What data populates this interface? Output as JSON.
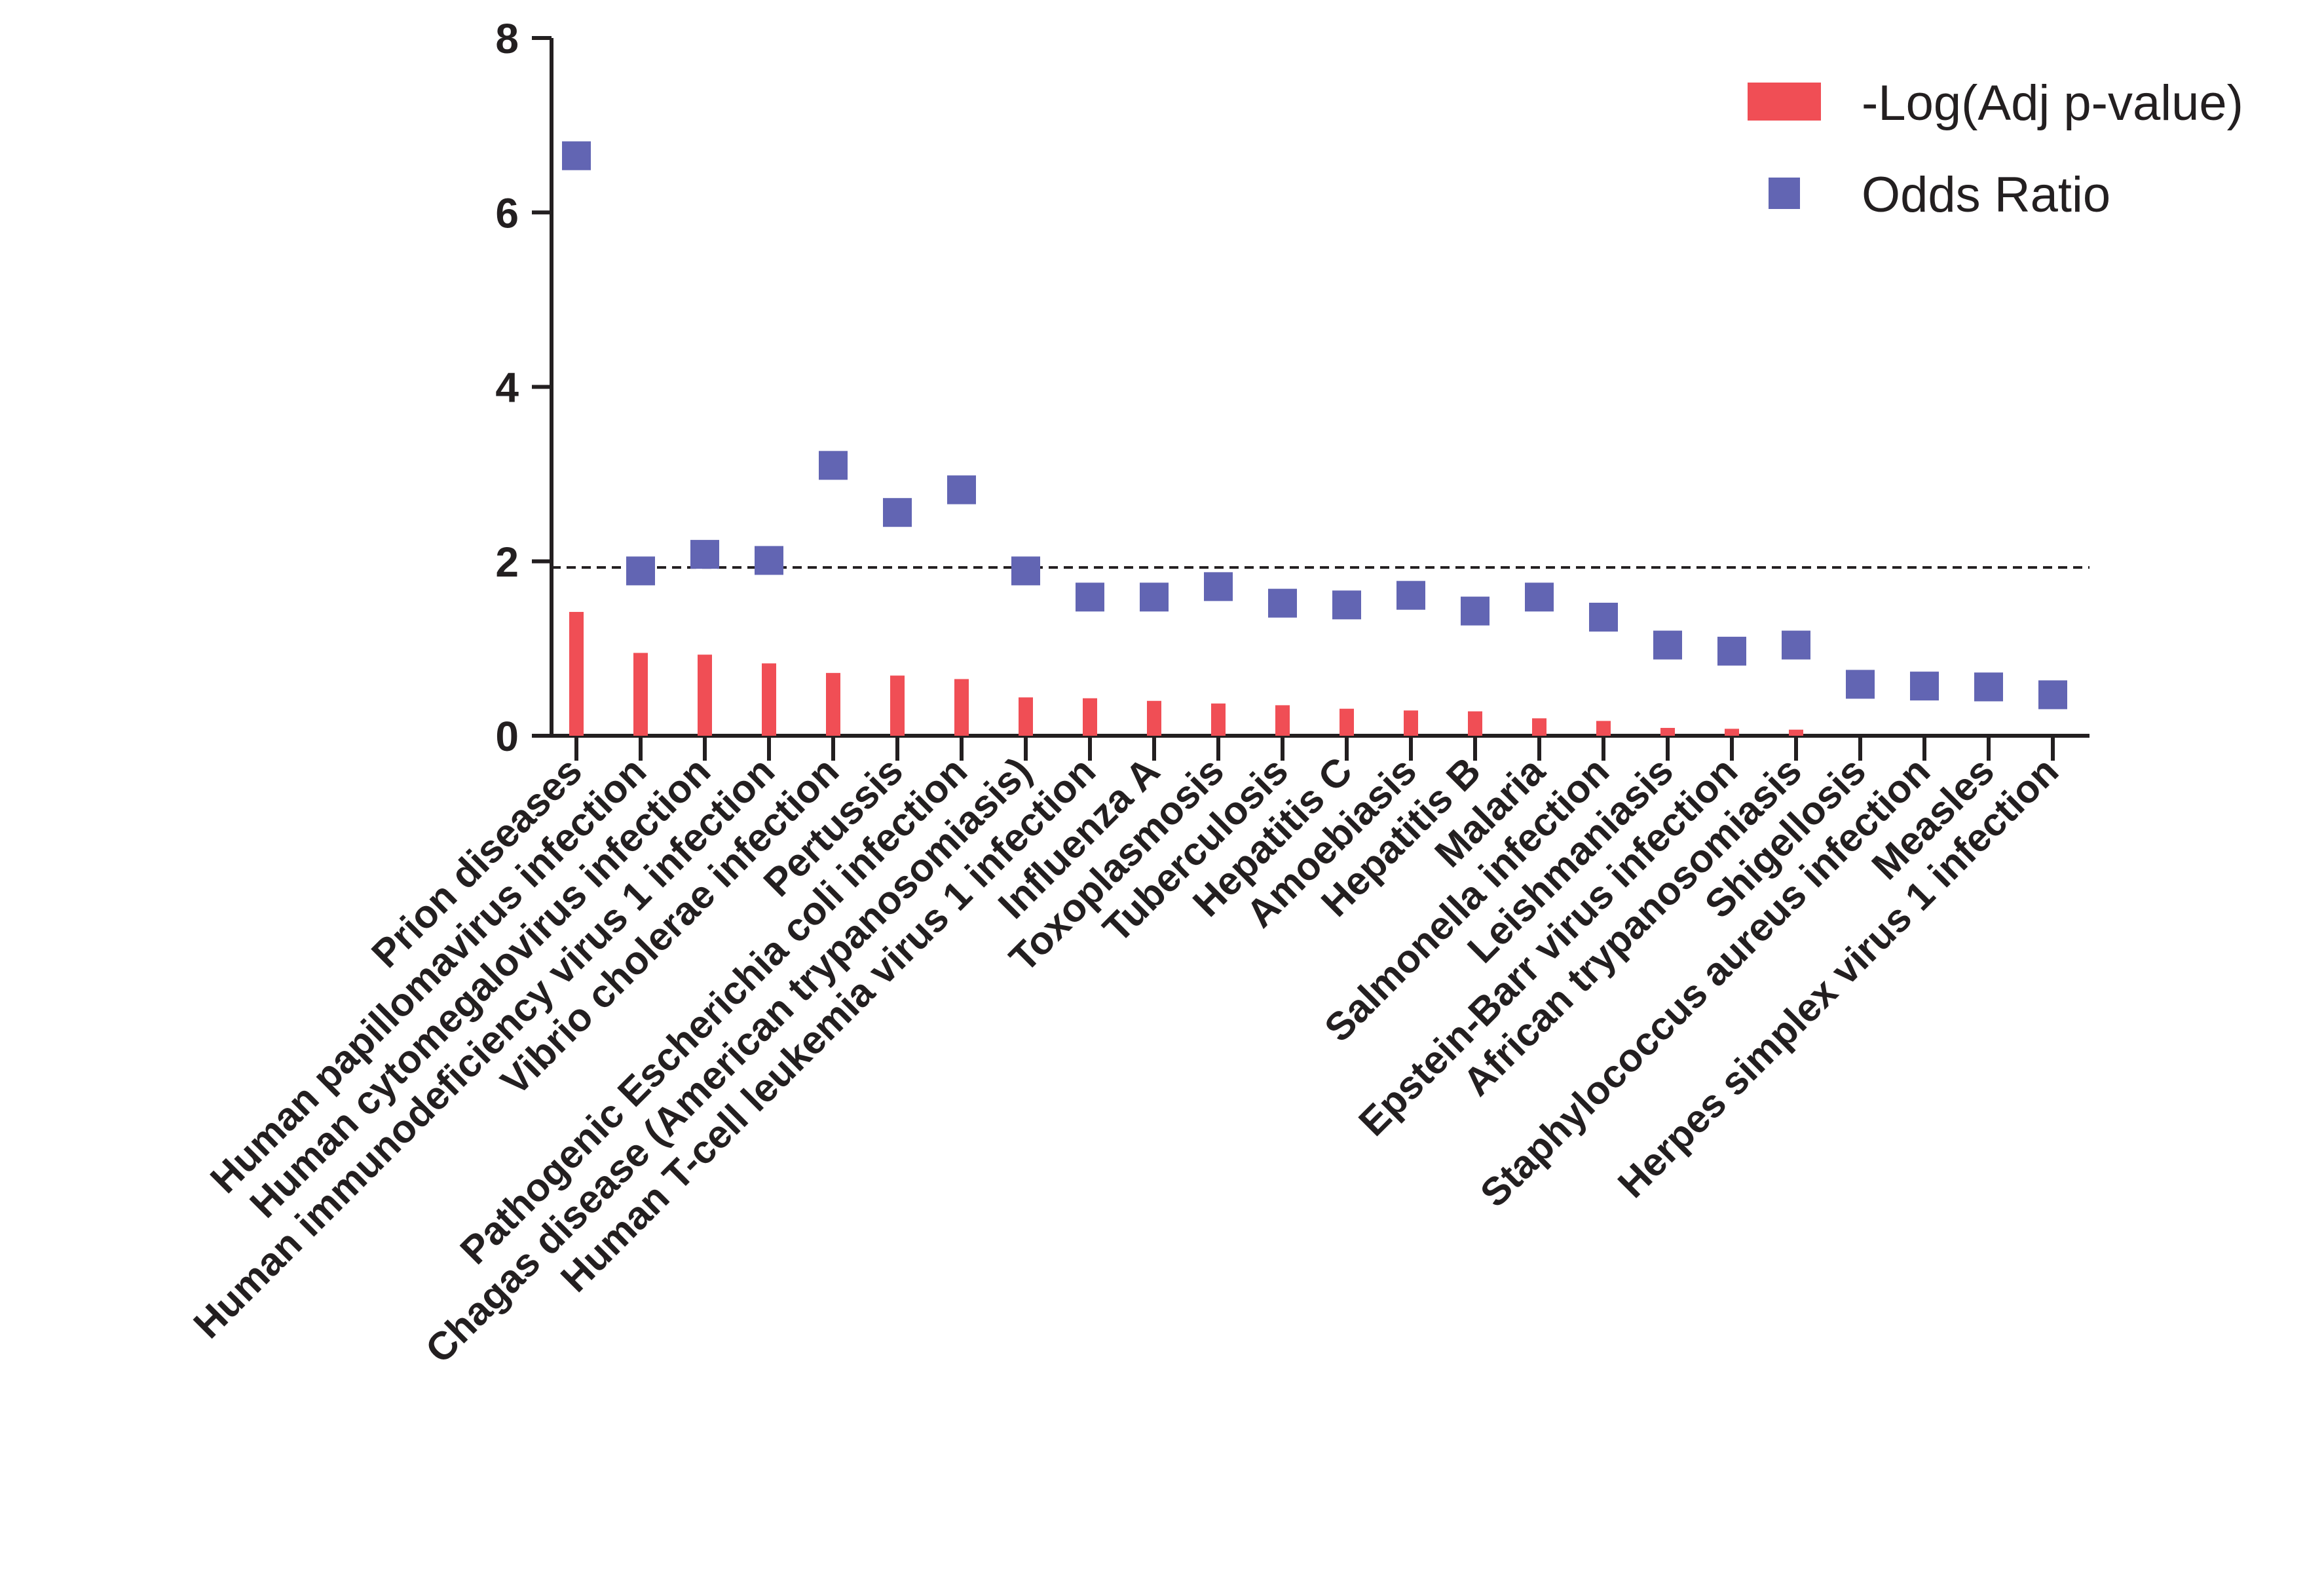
{
  "colors": {
    "bar": "#f04e55",
    "marker": "#6265b3",
    "axis": "#231f20"
  },
  "chart_data": {
    "type": "bar",
    "title": "",
    "xlabel": "",
    "ylabel": "",
    "ylim": [
      0,
      8
    ],
    "yticks": [
      0,
      2,
      4,
      6,
      8
    ],
    "y_tick_labels": [
      "0",
      "2",
      "4",
      "6",
      "8"
    ],
    "reference_line": 1.93,
    "legend_position": "top-right",
    "categories": [
      "Prion diseases",
      "Human papillomavirus infection",
      "Human cytomegalovirus infection",
      "Human immunodeficiency virus 1 infection",
      "Vibrio cholerae infection",
      "Pertussis",
      "Pathogenic Escherichia coli infection",
      "Chagas disease (American trypanosomiasis)",
      "Human T-cell leukemia virus 1 infection",
      "Influenza A",
      "Toxoplasmosis",
      "Tuberculosis",
      "Hepatitis C",
      "Amoebiasis",
      "Hepatitis B",
      "Malaria",
      "Salmonella infection",
      "Leishmaniasis",
      "Epstein-Barr virus infection",
      "African trypanosomiasis",
      "Shigellosis",
      "Staphylococcus aureus infection",
      "Measles",
      "Herpes simplex virus 1 infection"
    ],
    "series": [
      {
        "name": "-Log(Adj p-value)",
        "type": "bar",
        "values": [
          1.42,
          0.95,
          0.93,
          0.83,
          0.72,
          0.69,
          0.65,
          0.44,
          0.43,
          0.4,
          0.37,
          0.35,
          0.31,
          0.29,
          0.28,
          0.2,
          0.17,
          0.09,
          0.08,
          0.07,
          0,
          0,
          0,
          0
        ]
      },
      {
        "name": "Odds Ratio",
        "type": "scatter",
        "values": [
          6.65,
          1.89,
          2.08,
          2.01,
          3.1,
          2.56,
          2.82,
          1.89,
          1.59,
          1.59,
          1.71,
          1.52,
          1.5,
          1.61,
          1.43,
          1.59,
          1.36,
          1.04,
          0.97,
          1.04,
          0.59,
          0.57,
          0.56,
          0.47
        ]
      }
    ]
  }
}
